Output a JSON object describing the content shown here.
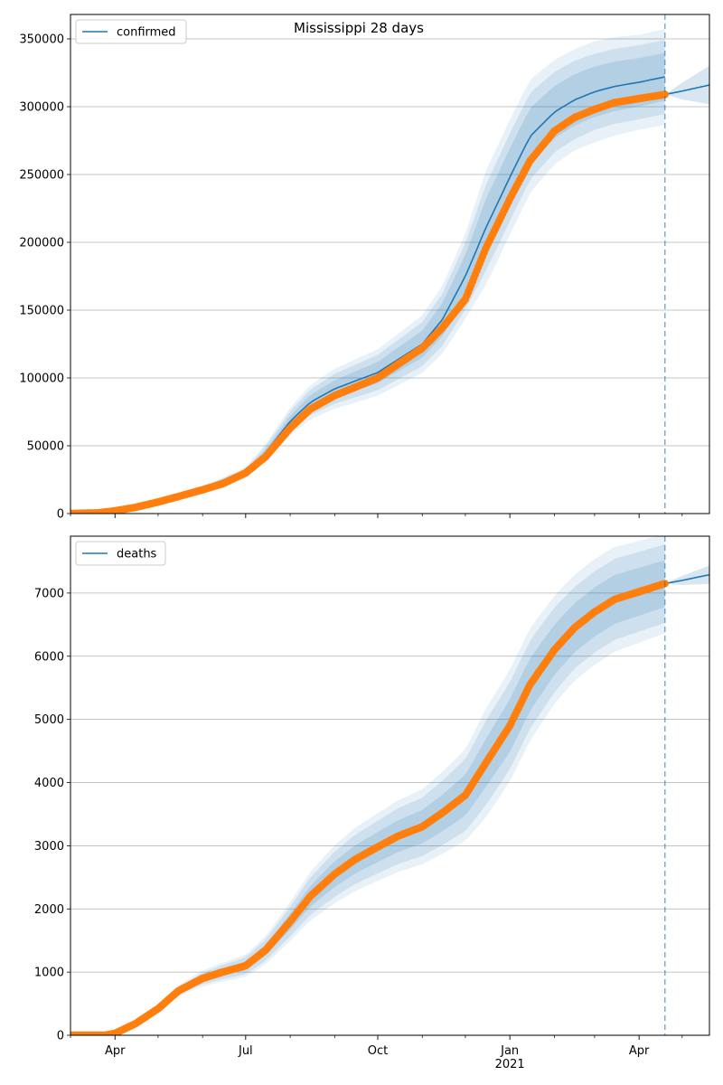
{
  "colors": {
    "model": "#1f77b4",
    "observed": "#ff7f0e",
    "grid": "#b0b0b0",
    "band": "#1f77b4"
  },
  "chart_data": [
    {
      "type": "line",
      "title": "Mississippi 28 days",
      "legend": {
        "label": "confirmed",
        "placement": "top-left"
      },
      "x_range": [
        "2020-03-01",
        "2021-05-20"
      ],
      "forecast_start": "2021-04-19",
      "ylim": [
        0,
        368000
      ],
      "y_ticks": [
        0,
        50000,
        100000,
        150000,
        200000,
        250000,
        300000,
        350000
      ],
      "y_tick_labels": [
        "0",
        "50000",
        "100000",
        "150000",
        "200000",
        "250000",
        "300000",
        "350000"
      ],
      "grid": "y",
      "model_series": {
        "name": "confirmed",
        "x": [
          "2020-03-01",
          "2020-04-01",
          "2020-05-01",
          "2020-06-01",
          "2020-07-01",
          "2020-07-15",
          "2020-08-01",
          "2020-08-15",
          "2020-09-01",
          "2020-10-01",
          "2020-11-01",
          "2020-11-15",
          "2020-12-01",
          "2020-12-15",
          "2021-01-01",
          "2021-01-15",
          "2021-02-01",
          "2021-02-15",
          "2021-03-01",
          "2021-03-15",
          "2021-04-01",
          "2021-04-19"
        ],
        "y": [
          0,
          3000,
          10000,
          18000,
          30000,
          45000,
          68000,
          82000,
          92000,
          104000,
          125000,
          143000,
          175000,
          210000,
          248000,
          278000,
          296000,
          305000,
          311000,
          315000,
          318000,
          322000
        ],
        "band_inner": [
          0.02,
          0.03,
          0.04,
          0.045,
          0.05,
          0.055,
          0.06,
          0.065,
          0.07,
          0.075,
          0.08,
          0.085,
          0.09,
          0.1,
          0.085,
          0.075,
          0.065,
          0.062,
          0.06,
          0.058,
          0.056,
          0.055
        ],
        "band_mid": [
          0.04,
          0.06,
          0.08,
          0.09,
          0.1,
          0.105,
          0.11,
          0.115,
          0.12,
          0.125,
          0.13,
          0.135,
          0.14,
          0.15,
          0.13,
          0.115,
          0.1,
          0.095,
          0.09,
          0.088,
          0.086,
          0.085
        ],
        "band_outer": [
          0.06,
          0.09,
          0.12,
          0.13,
          0.14,
          0.145,
          0.15,
          0.155,
          0.16,
          0.165,
          0.17,
          0.175,
          0.18,
          0.2,
          0.17,
          0.15,
          0.13,
          0.122,
          0.12,
          0.115,
          0.11,
          0.11
        ]
      },
      "observed_series": {
        "x": [
          "2020-03-01",
          "2020-03-20",
          "2020-04-01",
          "2020-04-15",
          "2020-05-01",
          "2020-05-15",
          "2020-06-01",
          "2020-06-15",
          "2020-07-01",
          "2020-07-15",
          "2020-08-01",
          "2020-08-15",
          "2020-09-01",
          "2020-09-15",
          "2020-10-01",
          "2020-10-15",
          "2020-11-01",
          "2020-11-15",
          "2020-12-01",
          "2020-12-15",
          "2021-01-01",
          "2021-01-15",
          "2021-02-01",
          "2021-02-15",
          "2021-03-01",
          "2021-03-15",
          "2021-04-01",
          "2021-04-19"
        ],
        "y": [
          0,
          500,
          2000,
          4500,
          8500,
          12500,
          17500,
          22000,
          30000,
          42000,
          63000,
          77000,
          87000,
          93000,
          100000,
          110000,
          122000,
          137000,
          158000,
          195000,
          232000,
          260000,
          282000,
          292000,
          298000,
          303000,
          306000,
          309000
        ]
      },
      "forecast_series": {
        "x": [
          "2021-04-19",
          "2021-05-01",
          "2021-05-20"
        ],
        "y": [
          309000,
          311500,
          316000
        ],
        "band": [
          0,
          0.02,
          0.045
        ]
      }
    },
    {
      "type": "line",
      "title": "",
      "legend": {
        "label": "deaths",
        "placement": "top-left"
      },
      "x_range": [
        "2020-03-01",
        "2021-05-20"
      ],
      "forecast_start": "2021-04-19",
      "ylim": [
        0,
        7900
      ],
      "y_ticks": [
        0,
        1000,
        2000,
        3000,
        4000,
        5000,
        6000,
        7000
      ],
      "y_tick_labels": [
        "0",
        "1000",
        "2000",
        "3000",
        "4000",
        "5000",
        "6000",
        "7000"
      ],
      "grid": "y",
      "x_ticks": [
        "2020-04-01",
        "2020-07-01",
        "2020-10-01",
        "2021-01-01",
        "2021-04-01"
      ],
      "x_tick_labels": [
        "Apr",
        "Jul",
        "Oct",
        "Jan",
        "Apr"
      ],
      "x_minor_ticks": [
        "2020-03-01",
        "2020-05-01",
        "2020-06-01",
        "2020-08-01",
        "2020-09-01",
        "2020-11-01",
        "2020-12-01",
        "2021-02-01",
        "2021-03-01",
        "2021-05-01"
      ],
      "x_secondary_label": "2021",
      "model_series": {
        "name": "deaths",
        "x": [
          "2020-03-01",
          "2020-03-25",
          "2020-04-01",
          "2020-04-15",
          "2020-05-01",
          "2020-05-15",
          "2020-06-01",
          "2020-06-15",
          "2020-07-01",
          "2020-07-15",
          "2020-08-01",
          "2020-08-15",
          "2020-09-01",
          "2020-09-15",
          "2020-10-01",
          "2020-10-15",
          "2020-11-01",
          "2020-11-15",
          "2020-12-01",
          "2020-12-15",
          "2021-01-01",
          "2021-01-15",
          "2021-02-01",
          "2021-02-15",
          "2021-03-01",
          "2021-03-15",
          "2021-04-01",
          "2021-04-19"
        ],
        "y": [
          0,
          0,
          30,
          180,
          420,
          700,
          900,
          1000,
          1100,
          1350,
          1800,
          2200,
          2550,
          2780,
          2980,
          3150,
          3300,
          3520,
          3800,
          4300,
          4900,
          5550,
          6100,
          6450,
          6700,
          6900,
          7020,
          7150
        ],
        "band_inner": [
          0.02,
          0.02,
          0.03,
          0.035,
          0.04,
          0.045,
          0.05,
          0.055,
          0.06,
          0.065,
          0.07,
          0.075,
          0.08,
          0.08,
          0.08,
          0.08,
          0.08,
          0.082,
          0.085,
          0.088,
          0.085,
          0.075,
          0.065,
          0.06,
          0.058,
          0.056,
          0.054,
          0.052
        ],
        "band_mid": [
          0.04,
          0.04,
          0.06,
          0.07,
          0.08,
          0.09,
          0.1,
          0.11,
          0.12,
          0.125,
          0.13,
          0.135,
          0.14,
          0.14,
          0.14,
          0.14,
          0.14,
          0.145,
          0.15,
          0.155,
          0.14,
          0.125,
          0.11,
          0.1,
          0.096,
          0.093,
          0.09,
          0.087
        ],
        "band_outer": [
          0.06,
          0.06,
          0.09,
          0.1,
          0.11,
          0.125,
          0.14,
          0.15,
          0.16,
          0.165,
          0.17,
          0.175,
          0.18,
          0.18,
          0.18,
          0.18,
          0.18,
          0.185,
          0.19,
          0.2,
          0.18,
          0.16,
          0.14,
          0.13,
          0.125,
          0.12,
          0.115,
          0.11
        ]
      },
      "observed_series": {
        "x": [
          "2020-03-01",
          "2020-03-25",
          "2020-04-01",
          "2020-04-15",
          "2020-05-01",
          "2020-05-15",
          "2020-06-01",
          "2020-06-15",
          "2020-07-01",
          "2020-07-15",
          "2020-08-01",
          "2020-08-15",
          "2020-09-01",
          "2020-09-15",
          "2020-10-01",
          "2020-10-15",
          "2020-11-01",
          "2020-11-15",
          "2020-12-01",
          "2020-12-15",
          "2021-01-01",
          "2021-01-15",
          "2021-02-01",
          "2021-02-15",
          "2021-03-01",
          "2021-03-15",
          "2021-04-01",
          "2021-04-19"
        ],
        "y": [
          0,
          0,
          30,
          180,
          420,
          700,
          900,
          1000,
          1100,
          1350,
          1800,
          2200,
          2550,
          2780,
          2980,
          3150,
          3300,
          3520,
          3800,
          4300,
          4900,
          5550,
          6100,
          6450,
          6700,
          6900,
          7020,
          7150
        ]
      },
      "forecast_series": {
        "x": [
          "2021-04-19",
          "2021-05-01",
          "2021-05-20"
        ],
        "y": [
          7150,
          7200,
          7290
        ],
        "band": [
          0,
          0.01,
          0.02
        ]
      }
    }
  ]
}
